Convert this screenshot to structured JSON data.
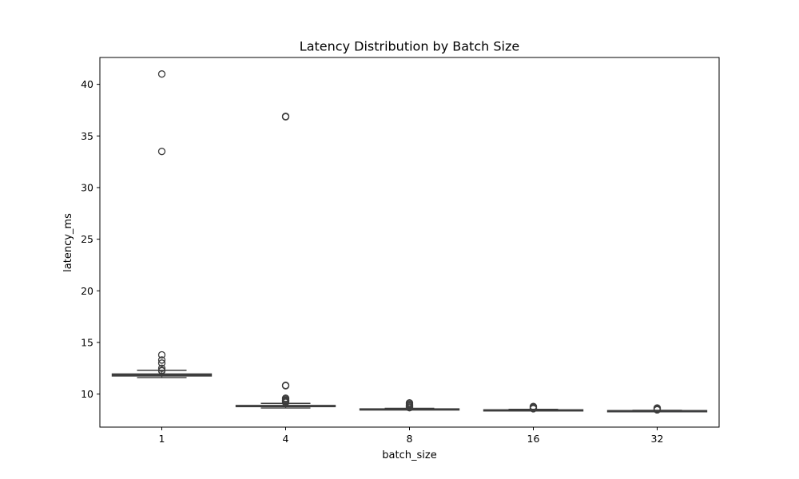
{
  "chart_data": {
    "type": "box",
    "title": "Latency Distribution by Batch Size",
    "xlabel": "batch_size",
    "ylabel": "latency_ms",
    "ylim": [
      6.8,
      42.6
    ],
    "yticks": [
      10,
      15,
      20,
      25,
      30,
      35,
      40
    ],
    "grid": false,
    "box_color": "#4c72b0",
    "line_color": "#3d3d3d",
    "categories": [
      "1",
      "4",
      "8",
      "16",
      "32"
    ],
    "boxes": [
      {
        "category": "1",
        "whisker_low": 11.6,
        "q1": 11.75,
        "median": 11.85,
        "q3": 11.95,
        "whisker_high": 12.3,
        "outliers": [
          41.0,
          33.5,
          13.8,
          13.3,
          13.0,
          12.5,
          12.3,
          12.25
        ]
      },
      {
        "category": "4",
        "whisker_low": 8.65,
        "q1": 8.78,
        "median": 8.85,
        "q3": 8.9,
        "whisker_high": 9.1,
        "outliers": [
          36.9,
          36.85,
          10.85,
          10.8,
          9.6,
          9.5,
          9.4,
          9.35,
          9.3,
          9.2
        ]
      },
      {
        "category": "8",
        "whisker_low": 8.48,
        "q1": 8.5,
        "median": 8.53,
        "q3": 8.57,
        "whisker_high": 8.62,
        "outliers": [
          9.15,
          9.05,
          8.95,
          8.85,
          8.75,
          8.68
        ]
      },
      {
        "category": "16",
        "whisker_low": 8.38,
        "q1": 8.41,
        "median": 8.44,
        "q3": 8.48,
        "whisker_high": 8.52,
        "outliers": [
          8.8,
          8.72,
          8.65,
          8.58
        ]
      },
      {
        "category": "32",
        "whisker_low": 8.33,
        "q1": 8.36,
        "median": 8.38,
        "q3": 8.4,
        "whisker_high": 8.43,
        "outliers": [
          8.65,
          8.58,
          8.52,
          8.47
        ]
      }
    ]
  }
}
